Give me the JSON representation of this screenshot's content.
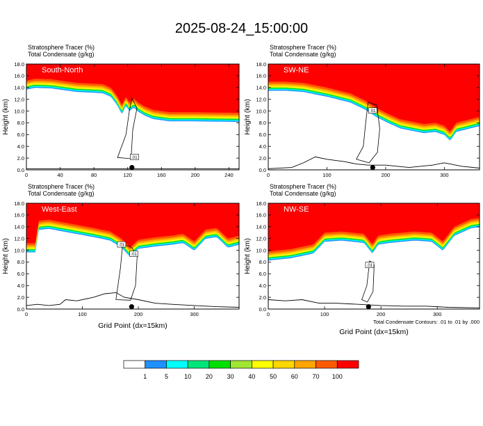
{
  "title": "2025-08-24_15:00:00",
  "panel_subtitle_line1": "Stratosphere Tracer   (%)",
  "panel_subtitle_line2": "Total Condensate   (g/kg)",
  "footnote": "Total Condensate Contours: .01 to .01 by .000",
  "colors": {
    "levels": [
      "#ffffff",
      "#1e90ff",
      "#00ffff",
      "#00e57a",
      "#00e000",
      "#a0e632",
      "#ffff00",
      "#ffd700",
      "#ffa500",
      "#ff5a00",
      "#ff0000"
    ],
    "contour": "#000000",
    "terrain": "#000000"
  },
  "colorbar": {
    "labels": [
      "1",
      "5",
      "10",
      "20",
      "30",
      "40",
      "50",
      "60",
      "70",
      "100"
    ]
  },
  "chart_data": [
    {
      "type": "heatmap",
      "panel_label": "South-North",
      "ylabel": "Height (km)",
      "xlabel": "",
      "xlim": [
        0,
        252
      ],
      "ylim": [
        0,
        18
      ],
      "xticks": [
        "0",
        "40",
        "80",
        "120",
        "160",
        "200",
        "240"
      ],
      "xtick_values": [
        0,
        40,
        80,
        120,
        160,
        200,
        240
      ],
      "yticks": [
        "0.0",
        "2.0",
        "4.0",
        "6.0",
        "8.0",
        "10.0",
        "12.0",
        "14.0",
        "16.0",
        "18.0"
      ],
      "tracer_base_km": {
        "x": [
          0,
          10,
          30,
          60,
          90,
          100,
          108,
          113,
          118,
          122,
          127,
          132,
          140,
          150,
          170,
          200,
          252
        ],
        "y": [
          15.2,
          15.5,
          15.4,
          14.8,
          14.6,
          14.0,
          12.5,
          11.0,
          12.5,
          11.5,
          12.2,
          11.5,
          10.8,
          10.2,
          9.8,
          9.8,
          9.7
        ]
      },
      "contour_labels": [
        ".01"
      ],
      "marker_x": 125
    },
    {
      "type": "heatmap",
      "panel_label": "SW-NE",
      "ylabel": "Height (km)",
      "xlabel": "",
      "xlim": [
        0,
        360
      ],
      "ylim": [
        0,
        18
      ],
      "xticks": [
        "0",
        "100",
        "200",
        "300"
      ],
      "xtick_values": [
        0,
        100,
        200,
        300
      ],
      "yticks": [
        "0.0",
        "2.0",
        "4.0",
        "6.0",
        "8.0",
        "10.0",
        "12.0",
        "14.0",
        "16.0",
        "18.0"
      ],
      "tracer_base_km": {
        "x": [
          0,
          30,
          60,
          100,
          140,
          165,
          185,
          205,
          225,
          245,
          265,
          285,
          300,
          310,
          320,
          340,
          360
        ],
        "y": [
          15.0,
          15.0,
          14.8,
          14.0,
          13.0,
          11.8,
          10.5,
          9.5,
          8.6,
          8.2,
          7.8,
          8.0,
          7.5,
          6.5,
          8.0,
          8.5,
          9.0
        ]
      },
      "contour_labels": [
        ".01"
      ],
      "marker_x": 178
    },
    {
      "type": "heatmap",
      "panel_label": "West-East",
      "ylabel": "Height (km)",
      "xlabel": "Grid Point (dx=15km)",
      "xlim": [
        0,
        380
      ],
      "ylim": [
        0,
        18
      ],
      "xticks": [
        "0",
        "100",
        "200",
        "300"
      ],
      "xtick_values": [
        0,
        100,
        200,
        300
      ],
      "yticks": [
        "0.0",
        "2.0",
        "4.0",
        "6.0",
        "8.0",
        "10.0",
        "12.0",
        "14.0",
        "16.0",
        "18.0"
      ],
      "tracer_base_km": {
        "x": [
          0,
          18,
          20,
          40,
          80,
          120,
          150,
          170,
          185,
          200,
          230,
          260,
          280,
          300,
          320,
          340,
          360,
          380
        ],
        "y": [
          11.2,
          11.2,
          15.0,
          15.2,
          14.5,
          13.8,
          13.2,
          12.0,
          10.5,
          11.8,
          12.2,
          12.5,
          12.8,
          11.5,
          13.5,
          13.8,
          12.0,
          12.5
        ]
      },
      "contour_labels": [
        ".01",
        ".01"
      ],
      "marker_x": 188
    },
    {
      "type": "heatmap",
      "panel_label": "NW-SE",
      "ylabel": "Height (km)",
      "xlabel": "Grid Point (dx=15km)",
      "xlim": [
        0,
        375
      ],
      "ylim": [
        0,
        18
      ],
      "xticks": [
        "0",
        "100",
        "200",
        "300"
      ],
      "xtick_values": [
        0,
        100,
        200,
        300
      ],
      "yticks": [
        "0.0",
        "2.0",
        "4.0",
        "6.0",
        "8.0",
        "10.0",
        "12.0",
        "14.0",
        "16.0",
        "18.0"
      ],
      "tracer_base_km": {
        "x": [
          0,
          40,
          80,
          100,
          130,
          170,
          185,
          195,
          215,
          260,
          290,
          310,
          330,
          360,
          375
        ],
        "y": [
          9.8,
          10.2,
          11.0,
          13.0,
          13.2,
          12.8,
          11.0,
          12.5,
          12.8,
          13.2,
          13.0,
          11.5,
          14.0,
          15.3,
          15.5
        ]
      },
      "contour_labels": [
        ".01"
      ],
      "marker_x": 178
    }
  ]
}
